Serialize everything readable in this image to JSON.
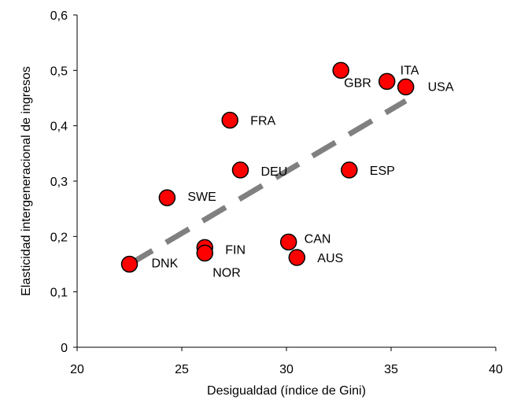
{
  "chart_data": {
    "type": "scatter",
    "xlabel": "Desigualdad (índice de Gini)",
    "ylabel": "Elasticidad intergeneracional de ingresos",
    "xlim": [
      20,
      40
    ],
    "ylim": [
      0,
      0.6
    ],
    "x_ticks": [
      "20",
      "25",
      "30",
      "35",
      "40"
    ],
    "y_ticks": [
      "0",
      "0,1",
      "0,2",
      "0,3",
      "0,4",
      "0,5",
      "0,6"
    ],
    "grid": false,
    "legend": "none",
    "marker_color": "#ff0000",
    "marker_edge_color": "#000000",
    "trendline_color": "#808080",
    "trendline_style": "dashed",
    "trendline": {
      "x": [
        22.5,
        35.7
      ],
      "y": [
        0.15,
        0.445
      ]
    },
    "points": [
      {
        "label": "DNK",
        "x": 22.5,
        "y": 0.15
      },
      {
        "label": "SWE",
        "x": 24.3,
        "y": 0.27
      },
      {
        "label": "FIN",
        "x": 26.1,
        "y": 0.18
      },
      {
        "label": "NOR",
        "x": 26.1,
        "y": 0.17
      },
      {
        "label": "FRA",
        "x": 27.3,
        "y": 0.41
      },
      {
        "label": "DEU",
        "x": 27.8,
        "y": 0.32
      },
      {
        "label": "CAN",
        "x": 30.1,
        "y": 0.19
      },
      {
        "label": "AUS",
        "x": 30.5,
        "y": 0.162
      },
      {
        "label": "GBR",
        "x": 32.6,
        "y": 0.5
      },
      {
        "label": "ESP",
        "x": 33.0,
        "y": 0.32
      },
      {
        "label": "ITA",
        "x": 34.8,
        "y": 0.48
      },
      {
        "label": "USA",
        "x": 35.7,
        "y": 0.47
      }
    ]
  }
}
